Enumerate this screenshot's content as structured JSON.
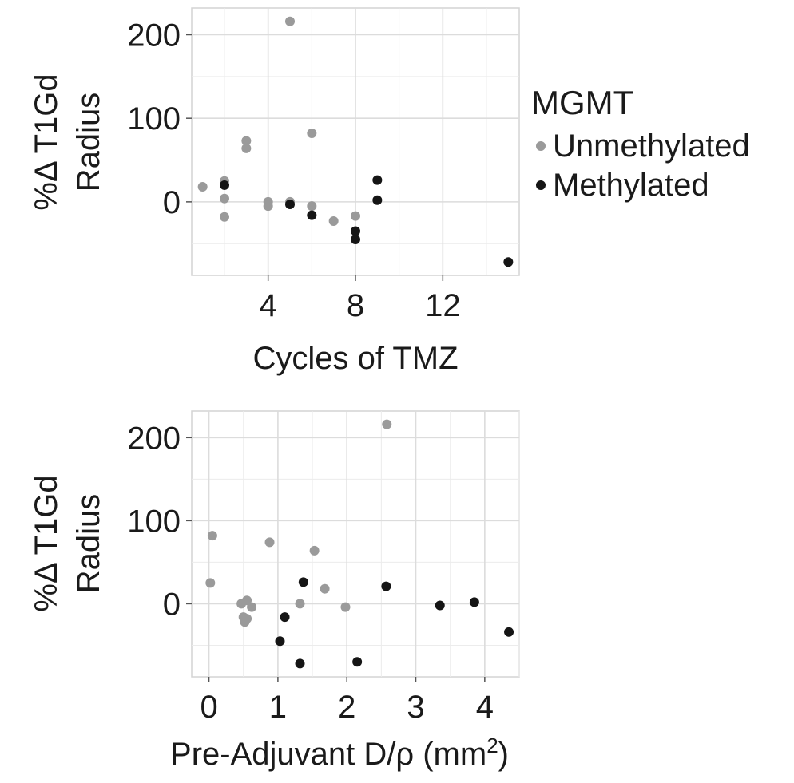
{
  "legend": {
    "title": "MGMT",
    "entries": [
      {
        "name": "Unmethylated",
        "color": "#9a9a9a"
      },
      {
        "name": "Methylated",
        "color": "#151515"
      }
    ]
  },
  "chart_data": [
    {
      "type": "scatter",
      "xlabel": "Cycles of TMZ",
      "ylabel_line1": "%Δ T1Gd",
      "ylabel_line2": "Radius",
      "xlim": [
        0.5,
        15.5
      ],
      "ylim": [
        -88,
        232
      ],
      "xticks": [
        4,
        8,
        12
      ],
      "xtick_labels": [
        "4",
        "8",
        "12"
      ],
      "yticks": [
        0,
        100,
        200
      ],
      "ytick_labels": [
        "0",
        "100",
        "200"
      ],
      "grid": true,
      "legend_position": "right",
      "series": [
        {
          "name": "Unmethylated",
          "color": "#9a9a9a",
          "points": [
            [
              1,
              18
            ],
            [
              2,
              25
            ],
            [
              2,
              4
            ],
            [
              2,
              -18
            ],
            [
              3,
              73
            ],
            [
              3,
              64
            ],
            [
              4,
              0
            ],
            [
              4,
              -5
            ],
            [
              5,
              216
            ],
            [
              5,
              0
            ],
            [
              6,
              82
            ],
            [
              6,
              -5
            ],
            [
              7,
              -23
            ],
            [
              8,
              -17
            ]
          ]
        },
        {
          "name": "Methylated",
          "color": "#151515",
          "points": [
            [
              2,
              20
            ],
            [
              5,
              -3
            ],
            [
              6,
              -16
            ],
            [
              8,
              -35
            ],
            [
              8,
              -45
            ],
            [
              9,
              26
            ],
            [
              9,
              2
            ],
            [
              15,
              -72
            ]
          ]
        }
      ]
    },
    {
      "type": "scatter",
      "xlabel": "Pre-Adjuvant D/ρ (mm",
      "xlabel_sup": "2",
      "xlabel_close": ")",
      "ylabel_line1": "%Δ T1Gd",
      "ylabel_line2": "Radius",
      "xlim": [
        -0.25,
        4.5
      ],
      "ylim": [
        -88,
        232
      ],
      "xticks": [
        0,
        1,
        2,
        3,
        4
      ],
      "xtick_labels": [
        "0",
        "1",
        "2",
        "3",
        "4"
      ],
      "yticks": [
        0,
        100,
        200
      ],
      "ytick_labels": [
        "0",
        "100",
        "200"
      ],
      "grid": true,
      "legend_position": "none",
      "series": [
        {
          "name": "Unmethylated",
          "color": "#9a9a9a",
          "points": [
            [
              0.05,
              82
            ],
            [
              0.02,
              25
            ],
            [
              0.88,
              74
            ],
            [
              1.53,
              64
            ],
            [
              1.68,
              18
            ],
            [
              2.58,
              216
            ],
            [
              1.98,
              -4
            ],
            [
              1.32,
              0
            ],
            [
              0.47,
              0
            ],
            [
              0.55,
              4
            ],
            [
              0.62,
              -4
            ],
            [
              0.5,
              -16
            ],
            [
              0.55,
              -18
            ],
            [
              0.52,
              -22
            ]
          ]
        },
        {
          "name": "Methylated",
          "color": "#151515",
          "points": [
            [
              1.37,
              26
            ],
            [
              2.57,
              21
            ],
            [
              3.35,
              -2
            ],
            [
              3.85,
              2
            ],
            [
              4.35,
              -34
            ],
            [
              1.1,
              -16
            ],
            [
              1.03,
              -45
            ],
            [
              1.32,
              -72
            ],
            [
              2.15,
              -70
            ]
          ]
        }
      ]
    }
  ]
}
